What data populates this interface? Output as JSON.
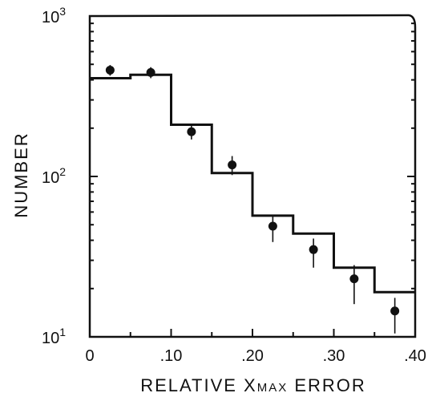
{
  "chart_data": {
    "type": "bar",
    "title": "",
    "xlabel": "RELATIVE XMAX ERROR",
    "xlabel_parts": {
      "prefix": "RELATIVE  X",
      "sub": "MAX",
      "suffix": " ERROR"
    },
    "ylabel": "NUMBER",
    "x_scale": "linear",
    "y_scale": "log",
    "xlim": [
      0,
      0.4
    ],
    "ylim": [
      10,
      1000
    ],
    "x_ticks": [
      0,
      0.05,
      0.1,
      0.15,
      0.2,
      0.25,
      0.3,
      0.35,
      0.4
    ],
    "x_tick_labels": [
      {
        "value": 0,
        "label": "0"
      },
      {
        "value": 0.1,
        "label": ".10"
      },
      {
        "value": 0.2,
        "label": ".20"
      },
      {
        "value": 0.3,
        "label": ".30"
      },
      {
        "value": 0.4,
        "label": ".40"
      }
    ],
    "y_major_ticks": [
      {
        "value": 10,
        "base": "10",
        "exp": "1"
      },
      {
        "value": 100,
        "base": "10",
        "exp": "2"
      },
      {
        "value": 1000,
        "base": "10",
        "exp": "3"
      }
    ],
    "histogram": {
      "style": "step",
      "bin_edges": [
        0,
        0.05,
        0.1,
        0.15,
        0.2,
        0.25,
        0.3,
        0.35,
        0.4
      ],
      "values": [
        410,
        430,
        210,
        105,
        57,
        44,
        27,
        19
      ]
    },
    "points": {
      "style": "dots-with-error-bars",
      "x": [
        0.025,
        0.075,
        0.125,
        0.175,
        0.225,
        0.275,
        0.325,
        0.375
      ],
      "y": [
        460,
        445,
        190,
        118,
        49,
        35,
        23,
        14.5
      ],
      "err_low": [
        35,
        35,
        20,
        16,
        10,
        8,
        7,
        4
      ],
      "err_high": [
        35,
        35,
        20,
        16,
        8,
        6,
        5,
        3
      ]
    }
  }
}
